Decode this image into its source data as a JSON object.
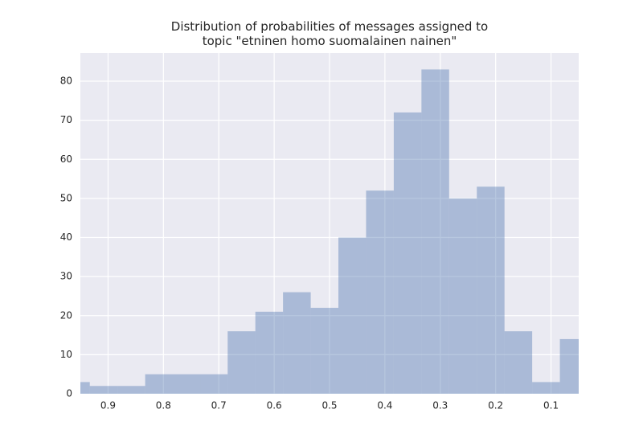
{
  "chart_data": {
    "type": "histogram",
    "title": "Distribution of probabilities of messages assigned to\ntopic \"etninen homo suomalainen nainen\"",
    "bins": [
      0.983,
      0.933,
      0.883,
      0.833,
      0.783,
      0.733,
      0.684,
      0.634,
      0.584,
      0.534,
      0.484,
      0.434,
      0.384,
      0.334,
      0.284,
      0.234,
      0.184,
      0.134,
      0.084,
      0.034
    ],
    "counts": [
      3,
      2,
      2,
      5,
      5,
      5,
      16,
      21,
      26,
      22,
      40,
      52,
      72,
      83,
      50,
      53,
      16,
      3,
      14
    ],
    "color": "#4c72b0",
    "alpha": 0.4,
    "xlim": [
      0.95,
      0.05
    ],
    "xticks": [
      0.9,
      0.8,
      0.7,
      0.6,
      0.5,
      0.4,
      0.3,
      0.2,
      0.1
    ],
    "ylim": [
      0,
      87.2
    ],
    "yticks": [
      0,
      10,
      20,
      30,
      40,
      50,
      60,
      70,
      80
    ],
    "grid": true,
    "background": "#eaeaf2"
  }
}
